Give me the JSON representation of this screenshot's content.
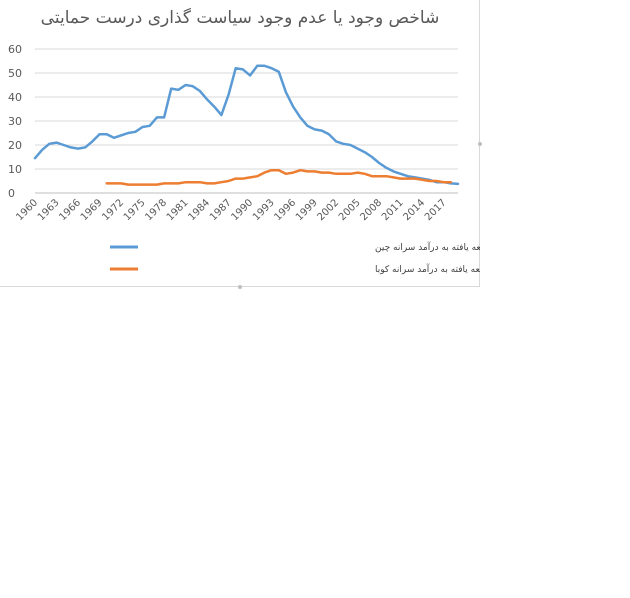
{
  "chart_data": {
    "type": "line",
    "title": "شاخص وجود یا عدم وجود سیاست گذاری درست حمایتی",
    "xlabel": "",
    "ylabel": "",
    "ylim": [
      0,
      60
    ],
    "yticks": [
      0,
      10,
      20,
      30,
      40,
      50,
      60
    ],
    "xticks": [
      1960,
      1963,
      1966,
      1969,
      1972,
      1975,
      1978,
      1981,
      1984,
      1987,
      1990,
      1993,
      1996,
      1999,
      2002,
      2005,
      2008,
      2011,
      2014,
      2017
    ],
    "xlim": [
      1960,
      2019
    ],
    "grid": true,
    "legend_position": "bottom",
    "series": [
      {
        "name": "تقسیم درآمد سرانه کشورهای توسعه یافته به درآمد سرانه چین",
        "color": "#5B9BD5",
        "x": [
          1960,
          1961,
          1962,
          1963,
          1964,
          1965,
          1966,
          1967,
          1968,
          1969,
          1970,
          1971,
          1972,
          1973,
          1974,
          1975,
          1976,
          1977,
          1978,
          1979,
          1980,
          1981,
          1982,
          1983,
          1984,
          1985,
          1986,
          1987,
          1988,
          1989,
          1990,
          1991,
          1992,
          1993,
          1994,
          1995,
          1996,
          1997,
          1998,
          1999,
          2000,
          2001,
          2002,
          2003,
          2004,
          2005,
          2006,
          2007,
          2008,
          2009,
          2010,
          2011,
          2012,
          2013,
          2014,
          2015,
          2016,
          2017,
          2018,
          2019
        ],
        "values": [
          14.5,
          18,
          20.5,
          21,
          20,
          19,
          18.5,
          19,
          21.5,
          24.5,
          24.5,
          23,
          24,
          25,
          25.5,
          27.5,
          28,
          31.5,
          31.5,
          43.5,
          43,
          45,
          44.5,
          42.5,
          39,
          36,
          32.5,
          41,
          52,
          51.5,
          49,
          53,
          53,
          52,
          50.5,
          42,
          36,
          31.5,
          28,
          26.5,
          26,
          24.5,
          21.5,
          20.5,
          20,
          18.5,
          17,
          15,
          12.5,
          10.5,
          9,
          8,
          7,
          6.5,
          6,
          5.5,
          4.5,
          4.5,
          4,
          3.8
        ]
      },
      {
        "name": "تقسیم درآمد سرانه کشورهای توسعه یافته به درآمد سرانه کوبا",
        "color": "#ED7D31",
        "x": [
          1970,
          1971,
          1972,
          1973,
          1974,
          1975,
          1976,
          1977,
          1978,
          1979,
          1980,
          1981,
          1982,
          1983,
          1984,
          1985,
          1986,
          1987,
          1988,
          1989,
          1990,
          1991,
          1992,
          1993,
          1994,
          1995,
          1996,
          1997,
          1998,
          1999,
          2000,
          2001,
          2002,
          2003,
          2004,
          2005,
          2006,
          2007,
          2008,
          2009,
          2010,
          2011,
          2012,
          2013,
          2014,
          2015,
          2016,
          2017,
          2018
        ],
        "values": [
          4,
          4,
          4,
          3.5,
          3.5,
          3.5,
          3.5,
          3.5,
          4,
          4,
          4,
          4.5,
          4.5,
          4.5,
          4,
          4,
          4.5,
          5,
          6,
          6,
          6.5,
          7,
          8.5,
          9.5,
          9.5,
          8,
          8.5,
          9.5,
          9,
          9,
          8.5,
          8.5,
          8,
          8,
          8,
          8.5,
          8,
          7,
          7,
          7,
          6.5,
          6,
          6,
          6,
          5.5,
          5,
          5,
          4.5,
          4.5
        ]
      }
    ]
  }
}
